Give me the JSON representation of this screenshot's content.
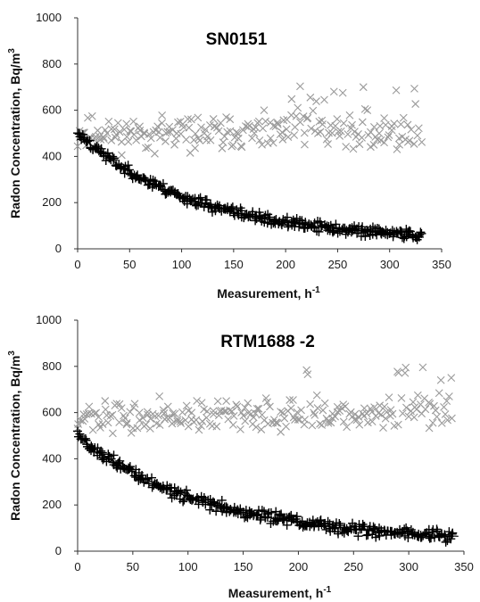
{
  "chart_data": [
    {
      "type": "scatter",
      "title": "SN0151",
      "xlabel": "Measurement, h",
      "xlabel_sup": "-1",
      "ylabel": "Radon Concentration, Bq/m",
      "ylabel_sup": "3",
      "xlim": [
        0,
        350
      ],
      "ylim": [
        0,
        1000
      ],
      "xticks": [
        "0",
        "50",
        "100",
        "150",
        "200",
        "250",
        "300",
        "350"
      ],
      "yticks": [
        "0",
        "200",
        "400",
        "600",
        "800",
        "1000"
      ],
      "grid": false,
      "legend": "none",
      "colors": {
        "cross_series": "#9a9a9a",
        "plus_series": "#000000",
        "trend": "#000000"
      },
      "series": [
        {
          "marker": "x",
          "start": 500,
          "end": 500,
          "decay": 0,
          "noise": 70,
          "tail_noise": 170,
          "n": 230,
          "seed": 11
        },
        {
          "marker": "+",
          "start": 500,
          "end": 35,
          "decay": 0.0088,
          "noise": 22,
          "tail_noise": 0,
          "n": 320,
          "seed": 23
        }
      ],
      "trend": {
        "type": "exponential",
        "start": 500,
        "end": 35,
        "decay": 0.0088,
        "x_range": [
          0,
          335
        ]
      }
    },
    {
      "type": "scatter",
      "title": "RTM1688 -2",
      "xlabel": "Measurement, h",
      "xlabel_sup": "-1",
      "ylabel": "Radon Concentration, Bq/m",
      "ylabel_sup": "3",
      "xlim": [
        0,
        350
      ],
      "ylim": [
        0,
        1000
      ],
      "xticks": [
        "0",
        "50",
        "100",
        "150",
        "200",
        "250",
        "300",
        "350"
      ],
      "yticks": [
        "0",
        "200",
        "400",
        "600",
        "800",
        "1000"
      ],
      "grid": false,
      "legend": "none",
      "colors": {
        "cross_series": "#9a9a9a",
        "plus_series": "#000000",
        "trend": "#000000"
      },
      "series": [
        {
          "marker": "x",
          "start": 575,
          "end": 600,
          "decay": 0,
          "noise": 65,
          "tail_noise": 170,
          "n": 240,
          "seed": 37
        },
        {
          "marker": "+",
          "start": 500,
          "end": 40,
          "decay": 0.0085,
          "noise": 25,
          "tail_noise": 0,
          "n": 330,
          "seed": 51
        }
      ],
      "trend": {
        "type": "exponential",
        "start": 500,
        "end": 40,
        "decay": 0.0085,
        "x_range": [
          0,
          345
        ]
      }
    }
  ]
}
